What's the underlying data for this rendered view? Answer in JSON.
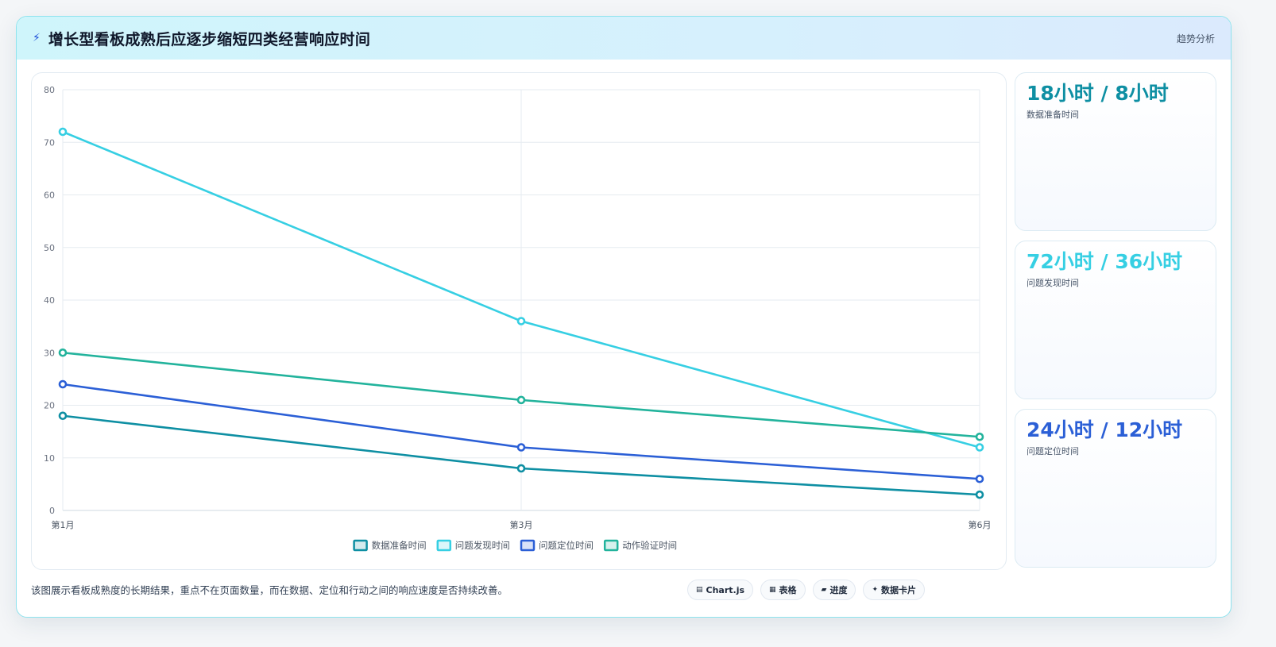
{
  "header": {
    "title": "增长型看板成熟后应逐步缩短四类经营响应时间",
    "tag": "趋势分析"
  },
  "colors": {
    "data_prep": "#0e8fa3",
    "issue_found": "#36cfe3",
    "issue_locate": "#2b5fd6",
    "action_verify": "#22b39c"
  },
  "chart_data": {
    "type": "line",
    "x": [
      "第1月",
      "第3月",
      "第6月"
    ],
    "ylim": [
      0,
      80
    ],
    "yticks": [
      0,
      10,
      20,
      30,
      40,
      50,
      60,
      70,
      80
    ],
    "grid": true,
    "legend_position": "bottom",
    "series": [
      {
        "name": "数据准备时间",
        "values": [
          18,
          8,
          3
        ],
        "color": "#0e8fa3"
      },
      {
        "name": "问题发现时间",
        "values": [
          72,
          36,
          12
        ],
        "color": "#36cfe3"
      },
      {
        "name": "问题定位时间",
        "values": [
          24,
          12,
          6
        ],
        "color": "#2b5fd6"
      },
      {
        "name": "动作验证时间",
        "values": [
          30,
          21,
          14
        ],
        "color": "#22b39c"
      }
    ]
  },
  "stats": [
    {
      "value": "18小时 / 8小时",
      "label": "数据准备时间",
      "color": "#0e8fa3"
    },
    {
      "value": "72小时 / 36小时",
      "label": "问题发现时间",
      "color": "#36cfe3"
    },
    {
      "value": "24小时 / 12小时",
      "label": "问题定位时间",
      "color": "#2b5fd6"
    }
  ],
  "footer": {
    "note": "该图展示看板成熟度的长期结果，重点不在页面数量，而在数据、定位和行动之间的响应速度是否持续改善。",
    "pills": [
      {
        "icon": "chart-icon",
        "glyph": "▤",
        "label": "Chart.js"
      },
      {
        "icon": "table-icon",
        "glyph": "▦",
        "label": "表格"
      },
      {
        "icon": "progress-icon",
        "glyph": "▰",
        "label": "进度"
      },
      {
        "icon": "card-icon",
        "glyph": "✦",
        "label": "数据卡片"
      }
    ]
  }
}
